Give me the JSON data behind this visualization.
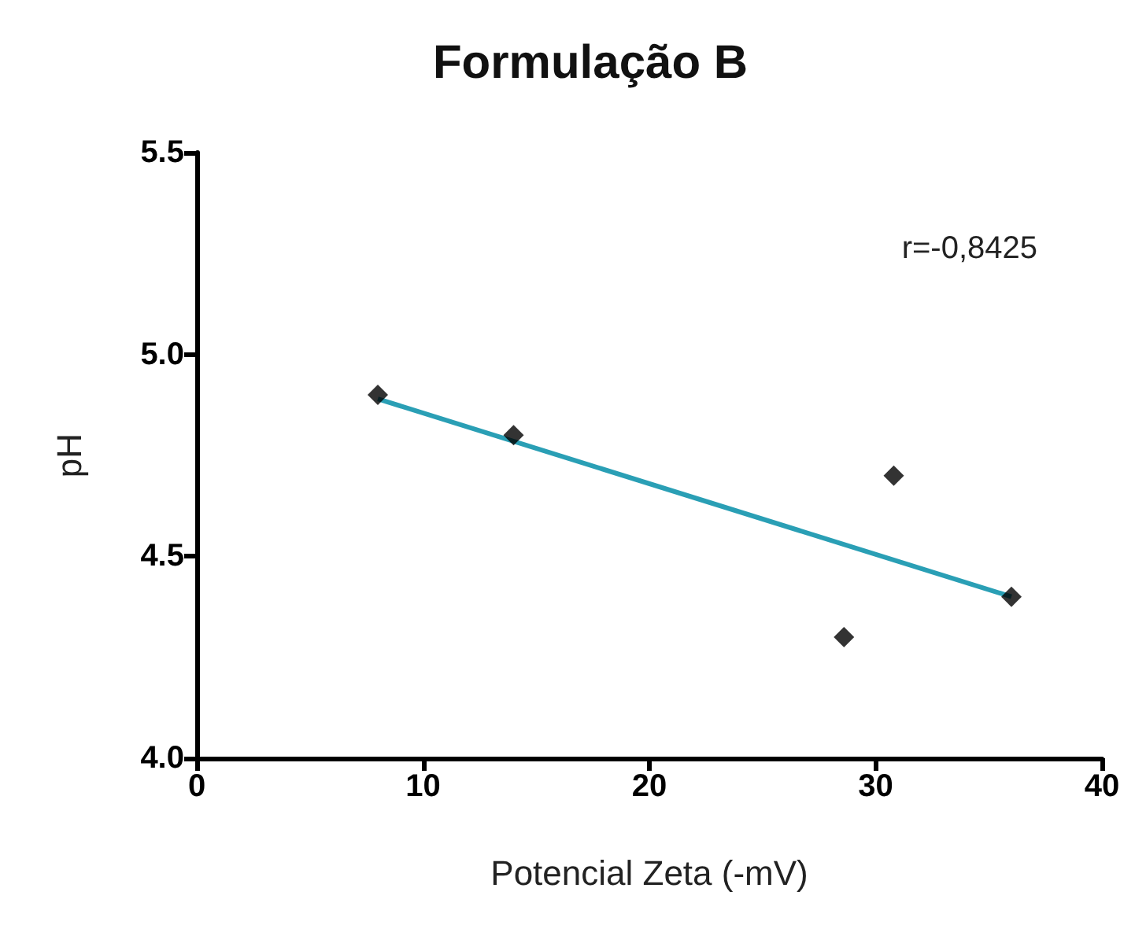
{
  "chart_data": {
    "type": "scatter",
    "title": "Formulação B",
    "xlabel": "Potencial Zeta (-mV)",
    "ylabel": "pH",
    "series": [
      {
        "type": "scatter",
        "color": "#000000",
        "marker": "diamond",
        "x": [
          8,
          14,
          28.6,
          30.8,
          36
        ],
        "values": [
          4.9,
          4.8,
          4.3,
          4.7,
          4.4
        ]
      },
      {
        "type": "line",
        "color": "#2a9fb5",
        "marker": "none",
        "x": [
          8,
          36
        ],
        "values": [
          4.89,
          4.4
        ]
      }
    ],
    "annotations": [
      "r=-0,8425"
    ],
    "xlim": [
      0,
      40
    ],
    "xticks": [
      0,
      10,
      20,
      30,
      40
    ],
    "ylim": [
      4.0,
      5.5
    ],
    "yticks": [
      {
        "value": 4.0,
        "label": "4.0"
      },
      {
        "value": 4.5,
        "label": "4.5"
      },
      {
        "value": 5.0,
        "label": "5.0"
      },
      {
        "value": 5.5,
        "label": "5.5"
      }
    ],
    "grid": false
  }
}
